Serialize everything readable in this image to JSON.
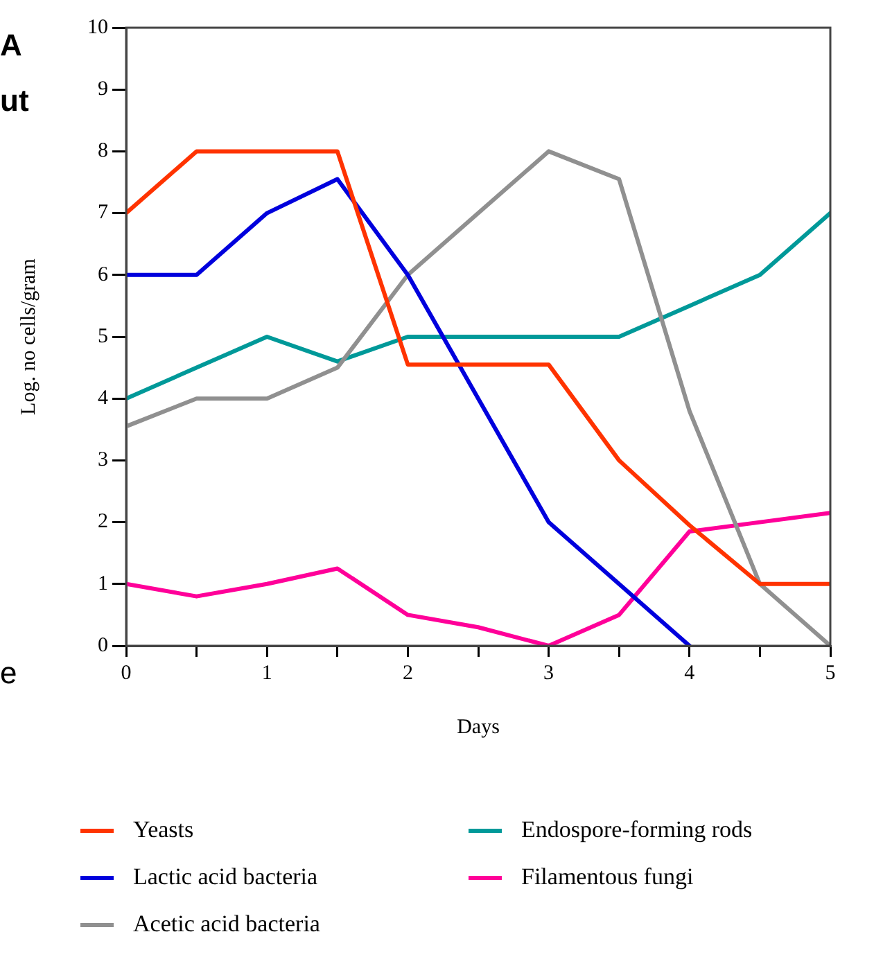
{
  "chart_data": {
    "type": "line",
    "xlabel": "Days",
    "ylabel": "Log. no cells/gram",
    "x": [
      0,
      0.5,
      1,
      1.5,
      2,
      2.5,
      3,
      3.5,
      4,
      4.5,
      5
    ],
    "series": [
      {
        "name": "Yeasts",
        "color": "#ff3300",
        "values": [
          7,
          8,
          8,
          8,
          4.55,
          4.55,
          4.55,
          3,
          1.95,
          1,
          1
        ]
      },
      {
        "name": "Lactic acid bacteria",
        "color": "#0000dd",
        "values": [
          6,
          6,
          7,
          7.55,
          6,
          4,
          2,
          1,
          0,
          null,
          null
        ]
      },
      {
        "name": "Acetic acid bacteria",
        "color": "#909090",
        "values": [
          3.55,
          4,
          4,
          4.5,
          6,
          7,
          8,
          7.55,
          3.8,
          1,
          0
        ]
      },
      {
        "name": "Endospore-forming rods",
        "color": "#009999",
        "values": [
          4,
          4.5,
          5,
          4.6,
          5,
          5,
          5,
          5,
          5.5,
          6,
          7
        ]
      },
      {
        "name": "Filamentous fungi",
        "color": "#ff0099",
        "values": [
          1,
          0.8,
          1,
          1.25,
          0.5,
          0.3,
          0,
          0.5,
          1.85,
          2,
          2.15
        ]
      }
    ],
    "xlim": [
      0,
      5
    ],
    "xticks": [
      0,
      {
        "value": 0.5,
        "label": null
      },
      1,
      {
        "value": 1.5,
        "label": null
      },
      2,
      {
        "value": 2.5,
        "label": null
      },
      3,
      {
        "value": 3.5,
        "label": null
      },
      4,
      {
        "value": 4.5,
        "label": null
      },
      5
    ],
    "ylim": [
      0,
      10
    ],
    "yticks": [
      0,
      1,
      2,
      3,
      4,
      5,
      6,
      7,
      8,
      9,
      10
    ],
    "grid": false,
    "legend": "bottom",
    "marker": "none",
    "line_style": "solid",
    "annotations": [
      "A",
      "ut",
      "e"
    ]
  }
}
